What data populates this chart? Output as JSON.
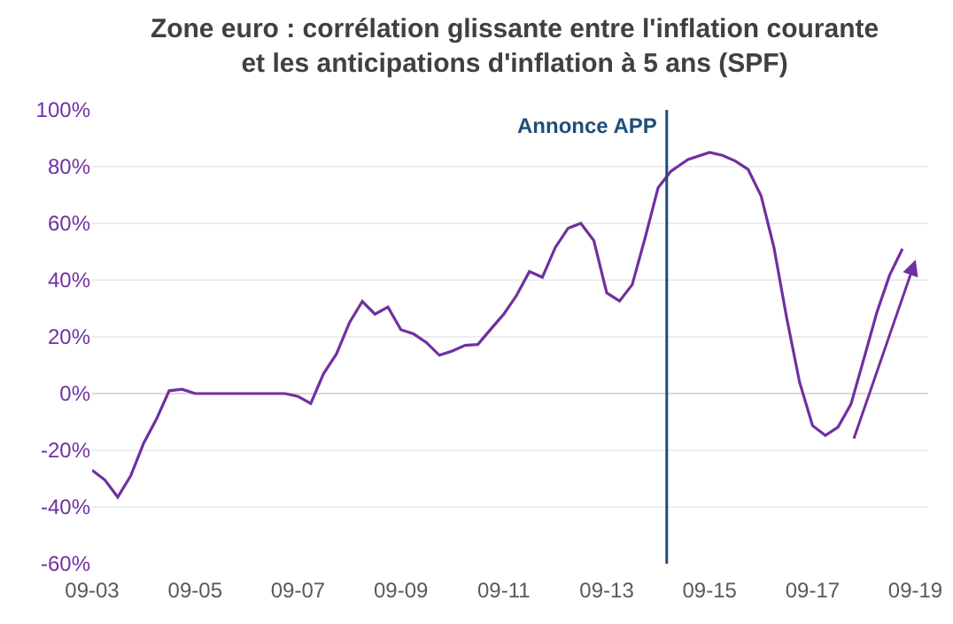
{
  "chart_data": {
    "type": "line",
    "title": "Zone euro : corrélation glissante entre l'inflation courante\net les anticipations d'inflation à 5 ans (SPF)",
    "x": [
      "2003-09",
      "2003-12",
      "2004-03",
      "2004-06",
      "2004-09",
      "2004-12",
      "2005-03",
      "2005-06",
      "2005-09",
      "2007-06",
      "2007-09",
      "2007-12",
      "2008-03",
      "2008-06",
      "2008-09",
      "2008-12",
      "2009-03",
      "2009-06",
      "2009-09",
      "2009-12",
      "2010-03",
      "2010-06",
      "2010-09",
      "2010-12",
      "2011-03",
      "2011-06",
      "2011-09",
      "2011-12",
      "2012-03",
      "2012-06",
      "2012-09",
      "2012-12",
      "2013-03",
      "2013-06",
      "2013-09",
      "2013-12",
      "2014-03",
      "2014-06",
      "2014-09",
      "2014-12",
      "2015-04",
      "2015-09",
      "2015-12",
      "2016-03",
      "2016-06",
      "2016-09",
      "2016-12",
      "2017-03",
      "2017-06",
      "2017-09",
      "2017-12",
      "2018-03",
      "2018-06",
      "2018-09",
      "2018-12",
      "2019-03",
      "2019-06"
    ],
    "series": [
      {
        "color": "#7030a0",
        "values": [
          -27,
          -30.5,
          -36.5,
          -29,
          -17.5,
          -9,
          1,
          1.5,
          0,
          0,
          -1,
          -3.5,
          7,
          14,
          25,
          32.5,
          28,
          30.5,
          22.5,
          21,
          18,
          13.5,
          15,
          17,
          17.3,
          22.7,
          28,
          34.6,
          43,
          41,
          51.5,
          58.3,
          60,
          54,
          35.5,
          32.6,
          38.4,
          55,
          72.6,
          78.4,
          82.5,
          85,
          84,
          82,
          79,
          69.7,
          51.5,
          26.8,
          4,
          -11.3,
          -14.8,
          -11.8,
          -3.7,
          12.4,
          28.5,
          41.6,
          51
        ]
      }
    ],
    "xlim": [
      "2003-09",
      "2019-12"
    ],
    "xticks": [
      {
        "value": "2003-09",
        "label": "09-03"
      },
      {
        "value": "2005-09",
        "label": "09-05"
      },
      {
        "value": "2007-09",
        "label": "09-07"
      },
      {
        "value": "2009-09",
        "label": "09-09"
      },
      {
        "value": "2011-09",
        "label": "09-11"
      },
      {
        "value": "2013-09",
        "label": "09-13"
      },
      {
        "value": "2015-09",
        "label": "09-15"
      },
      {
        "value": "2017-09",
        "label": "09-17"
      },
      {
        "value": "2019-09",
        "label": "09-19"
      }
    ],
    "ylim": [
      -60,
      100
    ],
    "yticks": [
      {
        "value": -60,
        "label": "-60%"
      },
      {
        "value": -40,
        "label": "-40%"
      },
      {
        "value": -20,
        "label": "-20%"
      },
      {
        "value": 0,
        "label": "0%"
      },
      {
        "value": 20,
        "label": "20%"
      },
      {
        "value": 40,
        "label": "40%"
      },
      {
        "value": 60,
        "label": "60%"
      },
      {
        "value": 80,
        "label": "80%"
      },
      {
        "value": 100,
        "label": "100%"
      }
    ],
    "ref_lines": [
      {
        "axis": "x",
        "value": "2014-11",
        "label": "Annonce APP",
        "color": "#1f4e79"
      }
    ],
    "grid": "y",
    "marker": "none",
    "line_style": "solid"
  }
}
